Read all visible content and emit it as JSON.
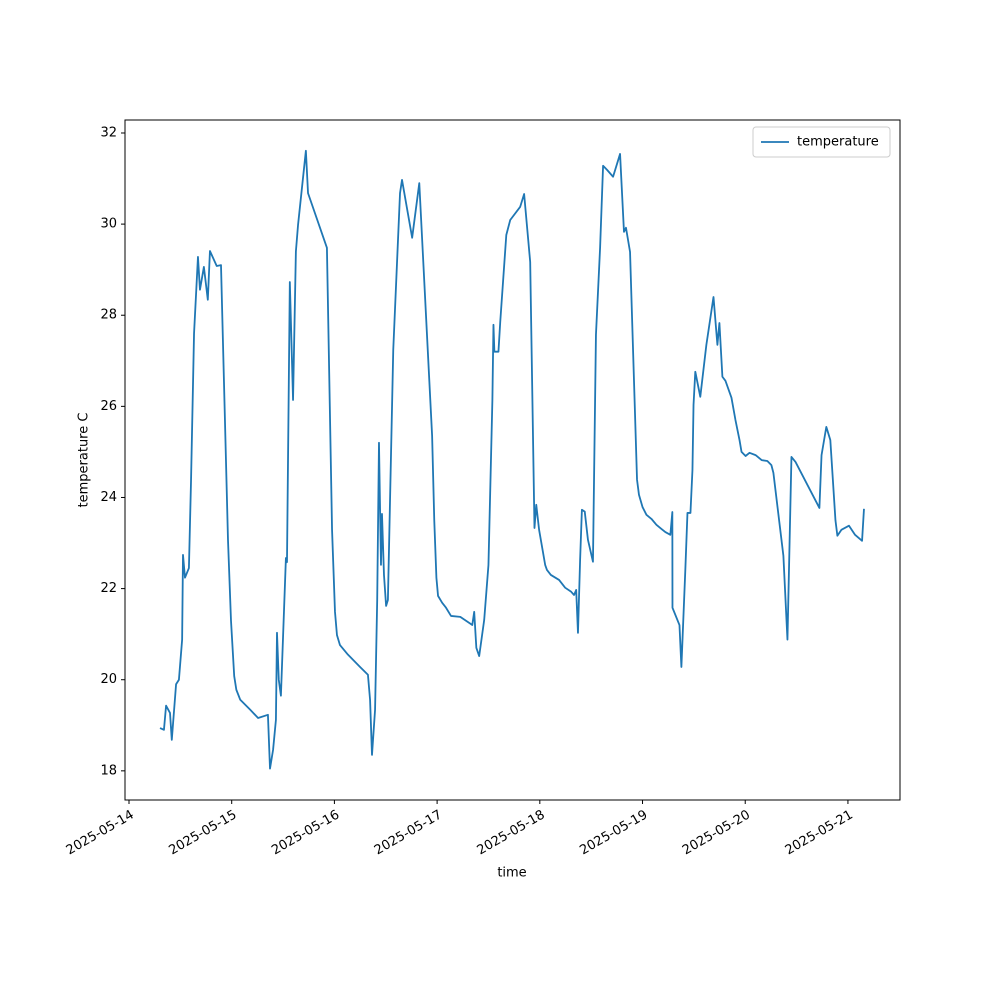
{
  "chart_data": {
    "type": "line",
    "x_label": "time",
    "y_label": "temperature C",
    "x": [
      "2025-05-14 07:15",
      "2025-05-14 08:10",
      "2025-05-14 08:40",
      "2025-05-14 09:35",
      "2025-05-14 10:00",
      "2025-05-14 11:00",
      "2025-05-14 11:40",
      "2025-05-14 12:25",
      "2025-05-14 12:37",
      "2025-05-14 13:05",
      "2025-05-14 14:00",
      "2025-05-14 14:30",
      "2025-05-14 15:12",
      "2025-05-14 16:07",
      "2025-05-14 16:35",
      "2025-05-14 17:30",
      "2025-05-14 18:25",
      "2025-05-14 18:55",
      "2025-05-14 20:30",
      "2025-05-14 21:30",
      "2025-05-14 23:08",
      "2025-05-14 23:50",
      "2025-05-15 00:35",
      "2025-05-15 01:05",
      "2025-05-15 02:00",
      "2025-05-15 04:20",
      "2025-05-15 06:10",
      "2025-05-15 08:28",
      "2025-05-15 08:57",
      "2025-05-15 09:40",
      "2025-05-15 10:20",
      "2025-05-15 10:35",
      "2025-05-15 11:00",
      "2025-05-15 11:30",
      "2025-05-15 12:40",
      "2025-05-15 12:55",
      "2025-05-15 13:35",
      "2025-05-15 14:20",
      "2025-05-15 15:00",
      "2025-05-15 15:30",
      "2025-05-15 17:20",
      "2025-05-15 17:50",
      "2025-05-15 22:15",
      "2025-05-15 23:27",
      "2025-05-16 00:08",
      "2025-05-16 00:36",
      "2025-05-16 01:18",
      "2025-05-16 03:10",
      "2025-05-16 06:00",
      "2025-05-16 07:50",
      "2025-05-16 08:20",
      "2025-05-16 08:47",
      "2025-05-16 09:30",
      "2025-05-16 10:00",
      "2025-05-16 10:25",
      "2025-05-16 10:53",
      "2025-05-16 11:07",
      "2025-05-16 11:35",
      "2025-05-16 12:05",
      "2025-05-16 12:30",
      "2025-05-16 13:45",
      "2025-05-16 15:20",
      "2025-05-16 15:48",
      "2025-05-16 18:10",
      "2025-05-16 19:50",
      "2025-05-16 22:50",
      "2025-05-16 23:20",
      "2025-05-16 23:50",
      "2025-05-17 00:13",
      "2025-05-17 01:10",
      "2025-05-17 02:05",
      "2025-05-17 03:15",
      "2025-05-17 05:25",
      "2025-05-17 07:45",
      "2025-05-17 08:13",
      "2025-05-17 08:40",
      "2025-05-17 09:10",
      "2025-05-17 09:50",
      "2025-05-17 11:00",
      "2025-05-17 12:00",
      "2025-05-17 12:55",
      "2025-05-17 13:10",
      "2025-05-17 13:23",
      "2025-05-17 14:20",
      "2025-05-17 14:45",
      "2025-05-17 16:10",
      "2025-05-17 17:05",
      "2025-05-17 19:25",
      "2025-05-17 20:20",
      "2025-05-17 21:45",
      "2025-05-17 22:45",
      "2025-05-17 23:10",
      "2025-05-17 23:50",
      "2025-05-18 01:15",
      "2025-05-18 01:40",
      "2025-05-18 02:35",
      "2025-05-18 04:30",
      "2025-05-18 05:55",
      "2025-05-18 07:20",
      "2025-05-18 08:00",
      "2025-05-18 08:30",
      "2025-05-18 08:55",
      "2025-05-18 09:25",
      "2025-05-18 09:50",
      "2025-05-18 10:30",
      "2025-05-18 11:15",
      "2025-05-18 12:25",
      "2025-05-18 13:07",
      "2025-05-18 14:05",
      "2025-05-18 14:47",
      "2025-05-18 15:43",
      "2025-05-18 17:07",
      "2025-05-18 18:45",
      "2025-05-18 19:40",
      "2025-05-18 20:08",
      "2025-05-18 21:05",
      "2025-05-18 22:43",
      "2025-05-18 23:10",
      "2025-05-19 00:00",
      "2025-05-19 00:55",
      "2025-05-19 02:05",
      "2025-05-19 03:15",
      "2025-05-19 04:25",
      "2025-05-19 05:20",
      "2025-05-19 06:30",
      "2025-05-19 06:58",
      "2025-05-19 07:00",
      "2025-05-19 08:38",
      "2025-05-19 09:05",
      "2025-05-19 10:00",
      "2025-05-19 10:30",
      "2025-05-19 11:12",
      "2025-05-19 11:40",
      "2025-05-19 11:55",
      "2025-05-19 12:20",
      "2025-05-19 13:30",
      "2025-05-19 14:55",
      "2025-05-19 16:35",
      "2025-05-19 17:30",
      "2025-05-19 17:58",
      "2025-05-19 18:40",
      "2025-05-19 19:23",
      "2025-05-19 20:47",
      "2025-05-19 21:43",
      "2025-05-19 22:40",
      "2025-05-19 23:08",
      "2025-05-20 00:05",
      "2025-05-20 01:00",
      "2025-05-20 02:25",
      "2025-05-20 03:50",
      "2025-05-20 05:10",
      "2025-05-20 06:07",
      "2025-05-20 06:35",
      "2025-05-20 08:55",
      "2025-05-20 09:52",
      "2025-05-20 10:48",
      "2025-05-20 11:45",
      "2025-05-20 17:20",
      "2025-05-20 17:50",
      "2025-05-20 18:57",
      "2025-05-20 19:53",
      "2025-05-20 21:05",
      "2025-05-20 21:32",
      "2025-05-20 22:28",
      "2025-05-21 00:15",
      "2025-05-21 01:40",
      "2025-05-21 03:18",
      "2025-05-21 03:45"
    ],
    "series": [
      {
        "name": "temperature",
        "color": "#1f77b4",
        "values": [
          18.94,
          18.9,
          19.43,
          19.27,
          18.68,
          19.9,
          20.0,
          20.88,
          22.74,
          22.24,
          22.45,
          24.39,
          27.6,
          29.28,
          28.56,
          29.06,
          28.34,
          29.41,
          29.08,
          29.1,
          23.07,
          21.3,
          20.08,
          19.78,
          19.56,
          19.34,
          19.16,
          19.23,
          18.05,
          18.46,
          19.12,
          21.03,
          20.0,
          19.65,
          22.67,
          22.58,
          28.73,
          26.14,
          29.4,
          29.98,
          31.61,
          30.68,
          29.48,
          23.29,
          21.49,
          20.98,
          20.76,
          20.55,
          20.28,
          20.11,
          19.56,
          18.35,
          19.34,
          21.75,
          25.2,
          22.52,
          23.64,
          22.3,
          21.62,
          21.75,
          27.24,
          30.68,
          30.97,
          29.7,
          30.9,
          25.35,
          23.5,
          22.24,
          21.84,
          21.69,
          21.58,
          21.4,
          21.38,
          21.23,
          21.2,
          21.49,
          20.7,
          20.52,
          21.31,
          22.52,
          26.14,
          27.79,
          27.2,
          27.2,
          27.85,
          29.76,
          30.09,
          30.38,
          30.66,
          29.17,
          23.33,
          23.84,
          23.29,
          22.52,
          22.41,
          22.3,
          22.19,
          22.02,
          21.93,
          21.86,
          21.97,
          21.03,
          22.63,
          23.73,
          23.69,
          23.07,
          22.59,
          27.57,
          29.48,
          31.28,
          31.19,
          31.04,
          31.54,
          29.83,
          29.92,
          29.39,
          24.39,
          24.06,
          23.79,
          23.62,
          23.53,
          23.4,
          23.31,
          23.24,
          23.18,
          23.68,
          21.58,
          21.2,
          20.28,
          22.41,
          23.66,
          23.66,
          24.6,
          26.03,
          26.76,
          26.21,
          27.35,
          28.4,
          27.35,
          27.83,
          26.65,
          26.56,
          26.19,
          25.7,
          25.26,
          25.0,
          24.91,
          24.98,
          24.93,
          24.82,
          24.8,
          24.71,
          24.54,
          22.72,
          20.88,
          24.89,
          24.78,
          23.77,
          24.93,
          25.55,
          25.26,
          23.5,
          23.16,
          23.29,
          23.38,
          23.18,
          23.05,
          23.75
        ]
      }
    ],
    "xlim": [
      "2025-05-13 23:04",
      "2025-05-21 12:10"
    ],
    "xticks": [
      "2025-05-14",
      "2025-05-15",
      "2025-05-16",
      "2025-05-17",
      "2025-05-18",
      "2025-05-19",
      "2025-05-20",
      "2025-05-21"
    ],
    "ylim": [
      17.36,
      32.285
    ],
    "yticks": [
      18,
      20,
      22,
      24,
      26,
      28,
      30,
      32
    ],
    "grid": false,
    "legend": "upper right"
  }
}
